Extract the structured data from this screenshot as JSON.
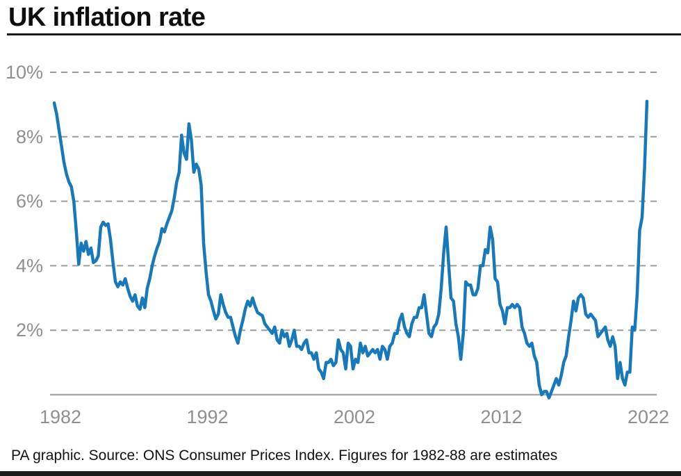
{
  "header": {
    "title": "UK inflation rate"
  },
  "footer": {
    "credit": "PA graphic. Source: ONS Consumer Prices Index. Figures for 1982-88 are estimates"
  },
  "chart_data": {
    "type": "line",
    "title": "UK inflation rate",
    "unit": "%",
    "grid": "horizontal dashed",
    "legend": "none",
    "ylim": [
      0,
      10
    ],
    "xlim_years": [
      1982,
      2022.42
    ],
    "x_start_year": 1982,
    "x_step_months": 2,
    "y_ticks": [
      {
        "label": "10%",
        "value": 10
      },
      {
        "label": "8%",
        "value": 8
      },
      {
        "label": "6%",
        "value": 6
      },
      {
        "label": "4%",
        "value": 4
      },
      {
        "label": "2%",
        "value": 2
      }
    ],
    "x_ticks": [
      {
        "label": "1982",
        "year": 1982
      },
      {
        "label": "1992",
        "year": 1992
      },
      {
        "label": "2002",
        "year": 2002
      },
      {
        "label": "2012",
        "year": 2012
      },
      {
        "label": "2022",
        "year": 2022
      }
    ],
    "colors": {
      "line": "#1779b9",
      "gridline": "#9b9b9b",
      "axis": "#a9a9a9",
      "tick_label": "#8f8f8f",
      "title_text": "#0e0e0e",
      "credit_text": "#111111",
      "bottom_bar": "#1a1a1a"
    },
    "series": [
      {
        "name": "UK inflation rate (CPI, % annual)",
        "sampling": "bimonthly Jan 1982 - May 2022",
        "values": [
          9.05,
          8.7,
          8.2,
          7.7,
          7.2,
          6.85,
          6.6,
          6.45,
          6.0,
          5.1,
          4.05,
          4.7,
          4.45,
          4.75,
          4.35,
          4.55,
          4.1,
          4.15,
          4.3,
          5.2,
          5.35,
          5.25,
          5.3,
          4.8,
          4.1,
          3.5,
          3.35,
          3.5,
          3.4,
          3.6,
          3.3,
          3.05,
          2.9,
          3.1,
          2.75,
          2.65,
          3.0,
          2.7,
          3.3,
          3.6,
          4.0,
          4.3,
          4.55,
          4.75,
          5.15,
          5.05,
          5.3,
          5.5,
          5.7,
          6.1,
          6.6,
          6.9,
          8.05,
          7.5,
          7.3,
          8.4,
          7.9,
          6.9,
          7.15,
          7.0,
          6.5,
          4.7,
          3.8,
          3.1,
          2.9,
          2.6,
          2.35,
          2.5,
          3.1,
          2.8,
          2.55,
          2.4,
          2.4,
          2.1,
          1.8,
          1.6,
          2.0,
          2.3,
          2.65,
          2.9,
          2.75,
          3.0,
          2.75,
          2.55,
          2.5,
          2.45,
          2.2,
          2.1,
          2.0,
          1.9,
          2.1,
          1.7,
          1.6,
          2.0,
          1.8,
          1.9,
          1.5,
          1.7,
          2.0,
          1.5,
          1.5,
          1.4,
          1.6,
          1.7,
          1.3,
          1.3,
          1.1,
          1.3,
          0.8,
          0.7,
          0.5,
          1.0,
          1.0,
          1.1,
          0.9,
          1.0,
          1.7,
          1.4,
          1.3,
          0.8,
          1.6,
          1.5,
          0.8,
          1.1,
          1.0,
          1.6,
          1.3,
          1.5,
          1.2,
          1.3,
          1.4,
          1.3,
          1.4,
          1.1,
          1.5,
          1.4,
          1.1,
          1.5,
          1.6,
          1.9,
          1.9,
          2.3,
          2.5,
          2.1,
          1.9,
          1.8,
          2.2,
          2.4,
          2.4,
          2.7,
          2.7,
          3.1,
          2.5,
          1.9,
          1.8,
          2.1,
          2.2,
          2.5,
          3.3,
          4.4,
          5.2,
          4.1,
          3.0,
          2.9,
          2.2,
          1.8,
          1.1,
          1.9,
          3.5,
          3.4,
          3.4,
          3.1,
          3.1,
          3.3,
          4.0,
          4.0,
          4.5,
          4.4,
          5.2,
          4.8,
          3.6,
          3.5,
          2.8,
          2.6,
          2.2,
          2.7,
          2.7,
          2.8,
          2.7,
          2.8,
          2.7,
          2.1,
          1.9,
          1.6,
          1.5,
          1.6,
          1.2,
          1.0,
          0.3,
          0.0,
          0.1,
          0.1,
          -0.1,
          0.1,
          0.3,
          0.5,
          0.3,
          0.6,
          1.0,
          1.2,
          1.8,
          2.3,
          2.9,
          2.6,
          3.0,
          3.1,
          3.0,
          2.5,
          2.4,
          2.5,
          2.4,
          2.3,
          1.8,
          1.9,
          2.0,
          2.1,
          1.7,
          1.5,
          1.8,
          1.5,
          0.5,
          1.0,
          0.5,
          0.3,
          0.7,
          0.7,
          2.1,
          2.0,
          3.1,
          5.1,
          5.5,
          7.0,
          9.1
        ]
      }
    ]
  }
}
